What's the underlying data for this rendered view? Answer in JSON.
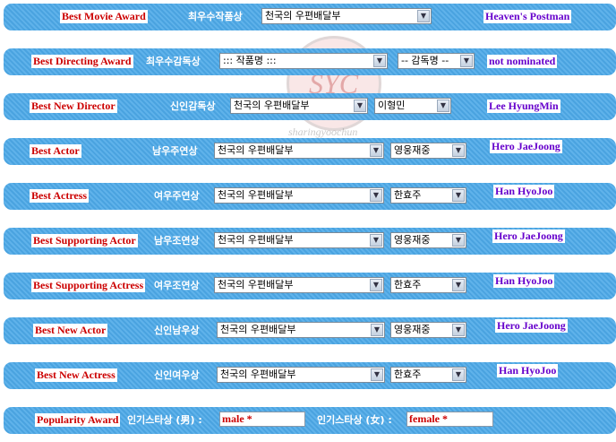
{
  "watermark": {
    "logo": "SYC",
    "text": "sharingyoochun"
  },
  "rows": [
    {
      "award": "Best Movie Award",
      "korean": "최우수작품상",
      "select1": "천국의 우편배달부",
      "winner": "Heaven's Postman"
    },
    {
      "award": "Best Directing Award",
      "korean": "최우수감독상",
      "select1": "::: 작품명 :::",
      "select2": "-- 감독명 --",
      "winner": "not nominated"
    },
    {
      "award": "Best New Director",
      "korean": "신인감독상",
      "select1": "천국의 우편배달부",
      "select2": "이형민",
      "winner": "Lee HyungMin"
    },
    {
      "award": "Best Actor",
      "korean": "남우주연상",
      "select1": "천국의 우편배달부",
      "select2": "영웅재중",
      "winner": "Hero JaeJoong"
    },
    {
      "award": "Best Actress",
      "korean": "여우주연상",
      "select1": "천국의 우편배달부",
      "select2": "한효주",
      "winner": "Han HyoJoo"
    },
    {
      "award": "Best Supporting Actor",
      "korean": "남우조연상",
      "select1": "천국의 우편배달부",
      "select2": "영웅재중",
      "winner": "Hero JaeJoong"
    },
    {
      "award": "Best Supporting Actress",
      "korean": "여우조연상",
      "select1": "천국의 우편배달부",
      "select2": "한효주",
      "winner": "Han HyoJoo"
    },
    {
      "award": "Best New Actor",
      "korean": "신인남우상",
      "select1": "천국의 우편배달부",
      "select2": "영웅재중",
      "winner": "Hero JaeJoong"
    },
    {
      "award": "Best New Actress",
      "korean": "신인여우상",
      "select1": "천국의 우편배달부",
      "select2": "한효주",
      "winner": "Han HyoJoo"
    }
  ],
  "popularity": {
    "award": "Popularity Award",
    "male_label": "인기스타상 (男) :",
    "male_value": "male *",
    "female_label": "인기스타상 (女) :",
    "female_value": "female *"
  },
  "colors": {
    "band": "#4aa3e0",
    "award_text": "#cc0000",
    "winner_text": "#6600cc"
  }
}
